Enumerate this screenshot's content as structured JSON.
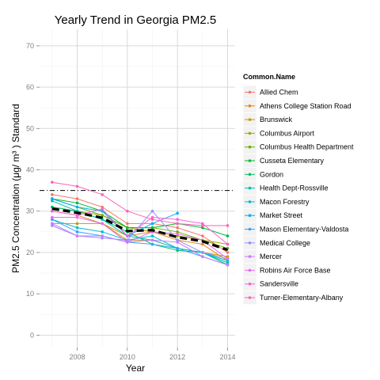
{
  "chart_data": {
    "type": "line",
    "title": "Yearly Trend in Georgia PM2.5",
    "xlabel": "Year",
    "ylabel": "PM2.5 Concentration (μg/ m³ ) Standard",
    "xlim": [
      2006.5,
      2014.3
    ],
    "ylim": [
      -3,
      74
    ],
    "x_ticks": [
      2008,
      2010,
      2012,
      2014
    ],
    "y_ticks": [
      0,
      10,
      20,
      30,
      40,
      50,
      60,
      70
    ],
    "grid": true,
    "legend": {
      "title": "Common.Name",
      "position": "right"
    },
    "standard_line": {
      "y": 35,
      "style": "dash-dot",
      "color": "#000000"
    },
    "trend_line": {
      "style": "dashed",
      "color": "#000000",
      "x": [
        2007,
        2008,
        2009,
        2010,
        2011,
        2012,
        2013,
        2014
      ],
      "values": [
        30.6,
        29.6,
        28.4,
        25.2,
        25.4,
        23.7,
        22.7,
        20.6
      ]
    },
    "series": [
      {
        "name": "Allied Chem",
        "color": "#F8766D",
        "x": [
          2007,
          2008,
          2009,
          2010,
          2011,
          2012,
          2013,
          2014
        ],
        "values": [
          34,
          33,
          31,
          27,
          27,
          26,
          24,
          20
        ]
      },
      {
        "name": "Athens College Station Road",
        "color": "#E6861A",
        "x": [
          2007,
          2008,
          2009,
          2010,
          2011,
          2012,
          2013,
          2014
        ],
        "values": [
          30,
          29,
          27,
          24,
          25,
          23,
          22,
          18
        ]
      },
      {
        "name": "Brunswick",
        "color": "#C89A00",
        "x": [
          2007,
          2008,
          2009,
          2010,
          2011,
          2012,
          2013,
          2014
        ],
        "values": [
          27,
          27,
          27,
          23,
          23,
          21,
          20,
          19
        ]
      },
      {
        "name": "Columbus Airport",
        "color": "#A3A500",
        "x": [
          2007,
          2008,
          2009,
          2010,
          2011,
          2012,
          2013,
          2014
        ],
        "values": [
          31,
          30,
          29,
          26,
          25,
          24,
          23,
          22
        ]
      },
      {
        "name": "Columbus Health Department",
        "color": "#6BB100",
        "x": [
          2007,
          2008,
          2009,
          2010,
          2011,
          2012,
          2013,
          2014
        ],
        "values": [
          33,
          31,
          29,
          26,
          26,
          25,
          23,
          21
        ]
      },
      {
        "name": "Cusseta Elementary",
        "color": "#00BA38",
        "x": [
          2007,
          2008,
          2009,
          2010,
          2011,
          2012,
          2013,
          2014
        ],
        "values": [
          33,
          32,
          30,
          26,
          26,
          27,
          26,
          24
        ]
      },
      {
        "name": "Gordon",
        "color": "#00BE6C",
        "x": [
          2007,
          2008,
          2009,
          2010,
          2011,
          2012,
          2013,
          2014
        ],
        "values": [
          31,
          30,
          28,
          25,
          22,
          20.5,
          20,
          17
        ]
      },
      {
        "name": "Health Dept-Rossville",
        "color": "#00C0AF",
        "x": [
          2007,
          2008,
          2009,
          2010,
          2011,
          2012,
          2013,
          2014
        ],
        "values": [
          32.5,
          30,
          28,
          24,
          23,
          21,
          20,
          17.5
        ]
      },
      {
        "name": "Macon Forestry",
        "color": "#00BCD8",
        "x": [
          2007,
          2008,
          2009,
          2010,
          2011,
          2012,
          2013,
          2014
        ],
        "values": [
          28,
          26,
          25,
          23,
          24,
          21,
          20,
          18
        ]
      },
      {
        "name": "Market Street",
        "color": "#00B0F6",
        "x": [
          2007,
          2008,
          2009,
          2010,
          2011,
          2012
        ],
        "values": [
          33,
          31,
          30,
          24,
          27,
          29.5
        ]
      },
      {
        "name": "Mason Elementary-Valdosta",
        "color": "#35A2FF",
        "x": [
          2007,
          2008,
          2009,
          2010,
          2011,
          2012,
          2013,
          2014
        ],
        "values": [
          28,
          25,
          24,
          22.5,
          22,
          21,
          19,
          17
        ]
      },
      {
        "name": "Medical College",
        "color": "#9590FF",
        "x": [
          2007,
          2008,
          2009,
          2010,
          2011,
          2012,
          2013,
          2014
        ],
        "values": [
          26.5,
          24,
          23.5,
          23,
          30,
          23,
          20,
          18.5
        ]
      },
      {
        "name": "Mercer",
        "color": "#C77CFF",
        "x": [
          2007,
          2008,
          2009,
          2010,
          2011,
          2012,
          2013,
          2014
        ],
        "values": [
          27,
          24,
          24,
          22.5,
          23,
          22.5,
          19,
          17
        ]
      },
      {
        "name": "Robins Air Force Base",
        "color": "#E76BF3",
        "x": [
          2007,
          2008,
          2009,
          2010,
          2011,
          2012,
          2013,
          2014
        ],
        "values": [
          28.5,
          28.5,
          27,
          22.5,
          25,
          24.5,
          23,
          18.5
        ]
      },
      {
        "name": "Sandersville",
        "color": "#FA62DB",
        "x": [
          2007,
          2008,
          2009,
          2010,
          2011,
          2012,
          2013,
          2014
        ],
        "values": [
          30,
          29,
          30.5,
          24,
          28.5,
          28,
          27,
          22
        ]
      },
      {
        "name": "Turner-Elementary-Albany",
        "color": "#FF62BC",
        "x": [
          2007,
          2008,
          2009,
          2010,
          2011,
          2012,
          2013,
          2014
        ],
        "values": [
          37,
          36,
          34,
          30,
          28,
          27,
          26.5,
          26.5
        ]
      }
    ]
  }
}
